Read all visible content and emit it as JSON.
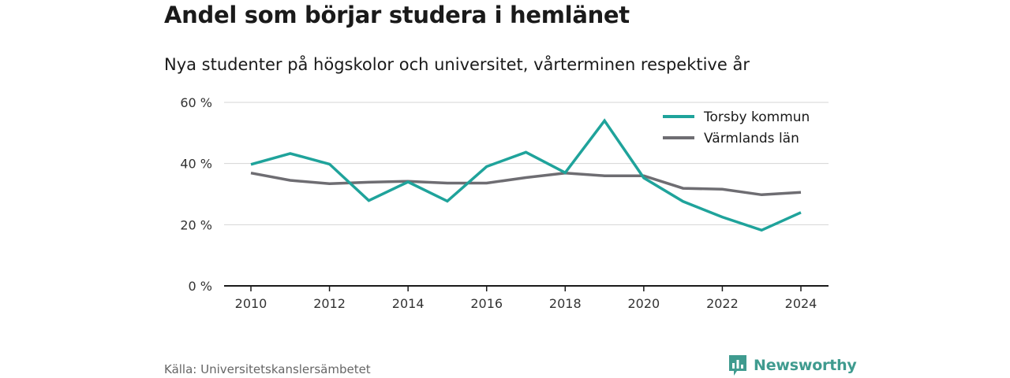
{
  "title": "Andel som börjar studera i hemlänet",
  "subtitle": "Nya studenter på högskolor och universitet, vårterminen respektive år",
  "source": "Källa: Universitetskanslersämbetet",
  "brand": {
    "name": "Newsworthy",
    "icon": "newsworthy-logo-icon",
    "color": "#3f9b8f"
  },
  "chart_data": {
    "type": "line",
    "x": [
      2010,
      2011,
      2012,
      2013,
      2014,
      2015,
      2016,
      2017,
      2018,
      2019,
      2020,
      2021,
      2022,
      2023,
      2024
    ],
    "x_ticks": [
      "2010",
      "2012",
      "2014",
      "2016",
      "2018",
      "2020",
      "2022",
      "2024"
    ],
    "y_ticks": [
      "0 %",
      "20 %",
      "40 %",
      "60 %"
    ],
    "ylim": [
      0,
      60
    ],
    "grid": "horizontal",
    "legend_position": "top-right",
    "series": [
      {
        "name": "Torsby kommun",
        "color": "#1fa39b",
        "values": [
          39.7,
          43.3,
          39.8,
          27.9,
          34.0,
          27.7,
          39.0,
          43.7,
          37.0,
          54.0,
          35.3,
          27.6,
          22.5,
          18.2,
          24.0
        ]
      },
      {
        "name": "Värmlands län",
        "color": "#6e6d72",
        "values": [
          36.9,
          34.5,
          33.4,
          33.9,
          34.2,
          33.6,
          33.6,
          35.4,
          36.9,
          36.0,
          36.0,
          31.9,
          31.6,
          29.8,
          30.6
        ]
      }
    ]
  }
}
